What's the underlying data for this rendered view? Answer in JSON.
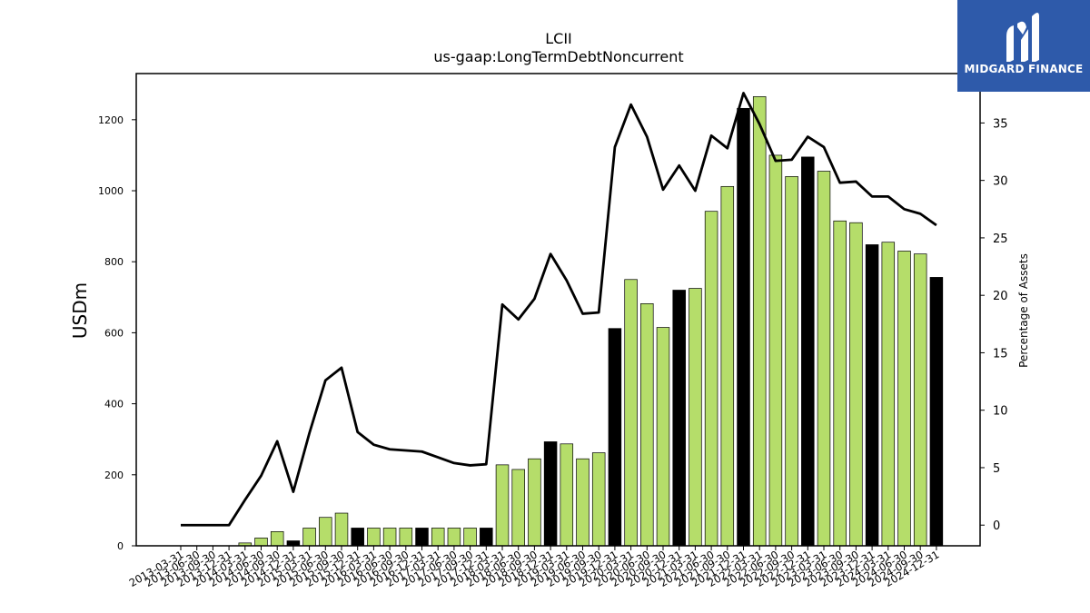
{
  "chart_data": {
    "type": "bar",
    "title": "LCII",
    "subtitle": "us-gaap:LongTermDebtNoncurrent",
    "ylabel": "USDm",
    "y2label": "Percentage of Assets",
    "ylim": [
      0,
      1330
    ],
    "y2lim": [
      -1.8,
      39.3
    ],
    "yticks": [
      0,
      200,
      400,
      600,
      800,
      1000,
      1200
    ],
    "y2ticks": [
      0,
      5,
      10,
      15,
      20,
      25,
      30,
      35
    ],
    "categories": [
      "2013-03-31",
      "2013-06-30",
      "2013-09-30",
      "2013-12-31",
      "2014-03-31",
      "2014-06-30",
      "2014-09-30",
      "2014-12-31",
      "2015-03-31",
      "2015-06-30",
      "2015-09-30",
      "2015-12-31",
      "2016-03-31",
      "2016-06-30",
      "2016-09-30",
      "2016-12-31",
      "2017-03-31",
      "2017-06-30",
      "2017-09-30",
      "2017-12-31",
      "2018-03-31",
      "2018-06-30",
      "2018-09-30",
      "2018-12-31",
      "2019-03-31",
      "2019-06-30",
      "2019-09-30",
      "2019-12-31",
      "2020-03-31",
      "2020-06-30",
      "2020-09-30",
      "2020-12-31",
      "2021-03-31",
      "2021-06-30",
      "2021-09-30",
      "2021-12-31",
      "2022-03-31",
      "2022-06-30",
      "2022-09-30",
      "2022-12-31",
      "2023-03-31",
      "2023-06-30",
      "2023-09-30",
      "2023-12-31",
      "2024-03-31",
      "2024-06-30",
      "2024-09-30",
      "2024-12-31"
    ],
    "series": [
      {
        "type": "bar",
        "axis": "left",
        "values": [
          0,
          0,
          0,
          0,
          8,
          22,
          40,
          14,
          50,
          80,
          92,
          50,
          50,
          50,
          50,
          50,
          50,
          50,
          50,
          50,
          228,
          215,
          245,
          293,
          287,
          245,
          262,
          612,
          750,
          682,
          615,
          720,
          725,
          942,
          1012,
          1232,
          1265,
          1100,
          1040,
          1095,
          1055,
          915,
          910,
          848,
          855,
          830,
          822,
          756
        ],
        "colors": [
          "#b5dd6a",
          "#b5dd6a",
          "#b5dd6a",
          "#000000",
          "#b5dd6a",
          "#b5dd6a",
          "#b5dd6a",
          "#000000",
          "#b5dd6a",
          "#b5dd6a",
          "#b5dd6a",
          "#000000",
          "#b5dd6a",
          "#b5dd6a",
          "#b5dd6a",
          "#000000",
          "#b5dd6a",
          "#b5dd6a",
          "#b5dd6a",
          "#000000",
          "#b5dd6a",
          "#b5dd6a",
          "#b5dd6a",
          "#000000",
          "#b5dd6a",
          "#b5dd6a",
          "#b5dd6a",
          "#000000",
          "#b5dd6a",
          "#b5dd6a",
          "#b5dd6a",
          "#000000",
          "#b5dd6a",
          "#b5dd6a",
          "#b5dd6a",
          "#000000",
          "#b5dd6a",
          "#b5dd6a",
          "#b5dd6a",
          "#000000",
          "#b5dd6a",
          "#b5dd6a",
          "#b5dd6a",
          "#000000",
          "#b5dd6a",
          "#b5dd6a",
          "#b5dd6a",
          "#000000"
        ]
      },
      {
        "type": "line",
        "axis": "right",
        "color": "#000000",
        "values": [
          0,
          0,
          0,
          0,
          2.2,
          4.3,
          7.3,
          2.9,
          8.0,
          12.6,
          13.7,
          8.1,
          7.0,
          6.6,
          6.5,
          6.4,
          5.9,
          5.4,
          5.2,
          5.3,
          19.2,
          17.9,
          19.7,
          23.6,
          21.3,
          18.4,
          18.5,
          32.9,
          36.6,
          33.8,
          29.2,
          31.3,
          29.1,
          33.9,
          32.8,
          37.6,
          34.9,
          31.7,
          31.8,
          33.8,
          32.9,
          29.8,
          29.9,
          28.6,
          28.6,
          27.5,
          27.1,
          26.1
        ]
      }
    ],
    "grid": false,
    "legend": "none"
  },
  "logo": {
    "text": "MIDGARD FINANCE",
    "bg_color": "#2e5aaa",
    "icon": "midgard-m-icon"
  }
}
